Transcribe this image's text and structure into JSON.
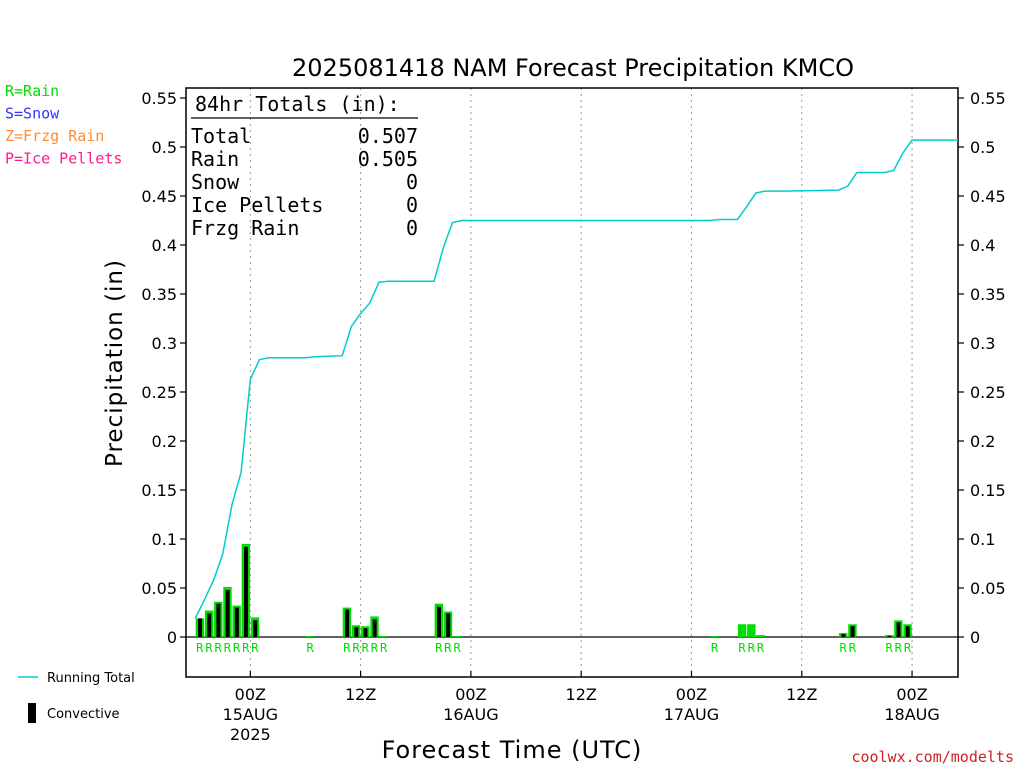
{
  "chart_data": {
    "type": "bar",
    "title": "2025081418 NAM Forecast Precipitation KMCO",
    "xlabel": "Forecast Time (UTC)",
    "ylabel": "Precipitation (in)",
    "ylim": [
      -0.04,
      0.56
    ],
    "y_ticks": [
      0,
      0.05,
      0.1,
      0.15,
      0.2,
      0.25,
      0.3,
      0.35,
      0.4,
      0.45,
      0.5,
      0.55
    ],
    "y_tick_labels": [
      "0",
      "0.05",
      "0.1",
      "0.15",
      "0.2",
      "0.25",
      "0.3",
      "0.35",
      "0.4",
      "0.45",
      "0.5",
      "0.55"
    ],
    "x_range_hours": [
      -7,
      77
    ],
    "x_ticks": [
      {
        "hour": 0,
        "lines": [
          "00Z",
          "15AUG",
          "2025"
        ]
      },
      {
        "hour": 12,
        "lines": [
          "12Z"
        ]
      },
      {
        "hour": 24,
        "lines": [
          "00Z",
          "16AUG"
        ]
      },
      {
        "hour": 36,
        "lines": [
          "12Z"
        ]
      },
      {
        "hour": 48,
        "lines": [
          "00Z",
          "17AUG"
        ]
      },
      {
        "hour": 60,
        "lines": [
          "12Z"
        ]
      },
      {
        "hour": 72,
        "lines": [
          "00Z",
          "18AUG"
        ]
      }
    ],
    "grid": true,
    "legend_top": [
      {
        "label": "R=Rain",
        "color": "#00dd00"
      },
      {
        "label": "S=Snow",
        "color": "#3333ff"
      },
      {
        "label": "Z=Frzg Rain",
        "color": "#ff8c33"
      },
      {
        "label": "P=Ice Pellets",
        "color": "#ff1a8c"
      }
    ],
    "legend_bottom": [
      {
        "label": "Running Total",
        "kind": "line",
        "color": "#00cccc"
      },
      {
        "label": "Convective",
        "kind": "bar",
        "color": "#000000"
      }
    ],
    "totals_box": {
      "heading": "84hr Totals (in):",
      "rows": [
        {
          "label": "Total",
          "value": "0.507"
        },
        {
          "label": "Rain",
          "value": "0.505"
        },
        {
          "label": "Snow",
          "value": "0"
        },
        {
          "label": "Ice Pellets",
          "value": "0"
        },
        {
          "label": "Frzg Rain",
          "value": "0"
        }
      ]
    },
    "series": [
      {
        "name": "Rain",
        "color": "#00dd00",
        "values": [
          {
            "hour": -5,
            "total": 0.019,
            "conv": 0.019
          },
          {
            "hour": -4,
            "total": 0.027,
            "conv": 0.024
          },
          {
            "hour": -3,
            "total": 0.036,
            "conv": 0.034
          },
          {
            "hour": -2,
            "total": 0.051,
            "conv": 0.048
          },
          {
            "hour": -1,
            "total": 0.032,
            "conv": 0.03
          },
          {
            "hour": 0,
            "total": 0.095,
            "conv": 0.092
          },
          {
            "hour": 1,
            "total": 0.02,
            "conv": 0.017
          },
          {
            "hour": 7,
            "total": 0.001,
            "conv": 0.0
          },
          {
            "hour": 11,
            "total": 0.03,
            "conv": 0.028
          },
          {
            "hour": 12,
            "total": 0.012,
            "conv": 0.01
          },
          {
            "hour": 13,
            "total": 0.011,
            "conv": 0.009
          },
          {
            "hour": 14,
            "total": 0.021,
            "conv": 0.018
          },
          {
            "hour": 15,
            "total": 0.001,
            "conv": 0.0
          },
          {
            "hour": 21,
            "total": 0.034,
            "conv": 0.031
          },
          {
            "hour": 22,
            "total": 0.026,
            "conv": 0.024
          },
          {
            "hour": 23,
            "total": 0.001,
            "conv": 0.0
          },
          {
            "hour": 51,
            "total": 0.001,
            "conv": 0.0
          },
          {
            "hour": 54,
            "total": 0.013,
            "conv": 0.0
          },
          {
            "hour": 55,
            "total": 0.013,
            "conv": 0.0
          },
          {
            "hour": 56,
            "total": 0.002,
            "conv": 0.0
          },
          {
            "hour": 65,
            "total": 0.004,
            "conv": 0.003
          },
          {
            "hour": 66,
            "total": 0.013,
            "conv": 0.011
          },
          {
            "hour": 70,
            "total": 0.002,
            "conv": 0.001
          },
          {
            "hour": 71,
            "total": 0.017,
            "conv": 0.015
          },
          {
            "hour": 72,
            "total": 0.013,
            "conv": 0.011
          }
        ]
      },
      {
        "name": "Running Total",
        "color": "#00cccc",
        "points": [
          [
            -6,
            0.019
          ],
          [
            -5,
            0.038
          ],
          [
            -4,
            0.058
          ],
          [
            -3,
            0.085
          ],
          [
            -2,
            0.135
          ],
          [
            -1,
            0.168
          ],
          [
            0,
            0.263
          ],
          [
            1,
            0.283
          ],
          [
            2,
            0.285
          ],
          [
            6,
            0.285
          ],
          [
            7,
            0.286
          ],
          [
            10,
            0.287
          ],
          [
            11,
            0.317
          ],
          [
            12,
            0.33
          ],
          [
            13,
            0.341
          ],
          [
            14,
            0.362
          ],
          [
            15,
            0.363
          ],
          [
            19,
            0.363
          ],
          [
            20,
            0.363
          ],
          [
            21,
            0.397
          ],
          [
            22,
            0.423
          ],
          [
            23,
            0.425
          ],
          [
            24,
            0.425
          ],
          [
            50,
            0.425
          ],
          [
            51,
            0.426
          ],
          [
            53,
            0.426
          ],
          [
            54,
            0.439
          ],
          [
            55,
            0.453
          ],
          [
            56,
            0.455
          ],
          [
            58,
            0.455
          ],
          [
            64,
            0.456
          ],
          [
            65,
            0.46
          ],
          [
            66,
            0.474
          ],
          [
            69,
            0.474
          ],
          [
            70,
            0.476
          ],
          [
            71,
            0.494
          ],
          [
            72,
            0.507
          ],
          [
            77,
            0.507
          ]
        ]
      }
    ],
    "type_labels": [
      {
        "hour": -5,
        "text": "R"
      },
      {
        "hour": -4,
        "text": "R"
      },
      {
        "hour": -3,
        "text": "R"
      },
      {
        "hour": -2,
        "text": "R"
      },
      {
        "hour": -1,
        "text": "R"
      },
      {
        "hour": 0,
        "text": "R"
      },
      {
        "hour": 1,
        "text": "R"
      },
      {
        "hour": 7,
        "text": "R"
      },
      {
        "hour": 11,
        "text": "R"
      },
      {
        "hour": 12,
        "text": "R"
      },
      {
        "hour": 13,
        "text": "R"
      },
      {
        "hour": 14,
        "text": "R"
      },
      {
        "hour": 15,
        "text": "R"
      },
      {
        "hour": 21,
        "text": "R"
      },
      {
        "hour": 22,
        "text": "R"
      },
      {
        "hour": 23,
        "text": "R"
      },
      {
        "hour": 51,
        "text": "R"
      },
      {
        "hour": 54,
        "text": "R"
      },
      {
        "hour": 55,
        "text": "R"
      },
      {
        "hour": 56,
        "text": "R"
      },
      {
        "hour": 65,
        "text": "R"
      },
      {
        "hour": 66,
        "text": "R"
      },
      {
        "hour": 70,
        "text": "R"
      },
      {
        "hour": 71,
        "text": "R"
      },
      {
        "hour": 72,
        "text": "R"
      }
    ]
  },
  "watermark": "coolwx.com/modelts",
  "colors": {
    "rain": "#00dd00",
    "running_total": "#00cccc",
    "convective": "#000000",
    "watermark": "#cc2222"
  }
}
